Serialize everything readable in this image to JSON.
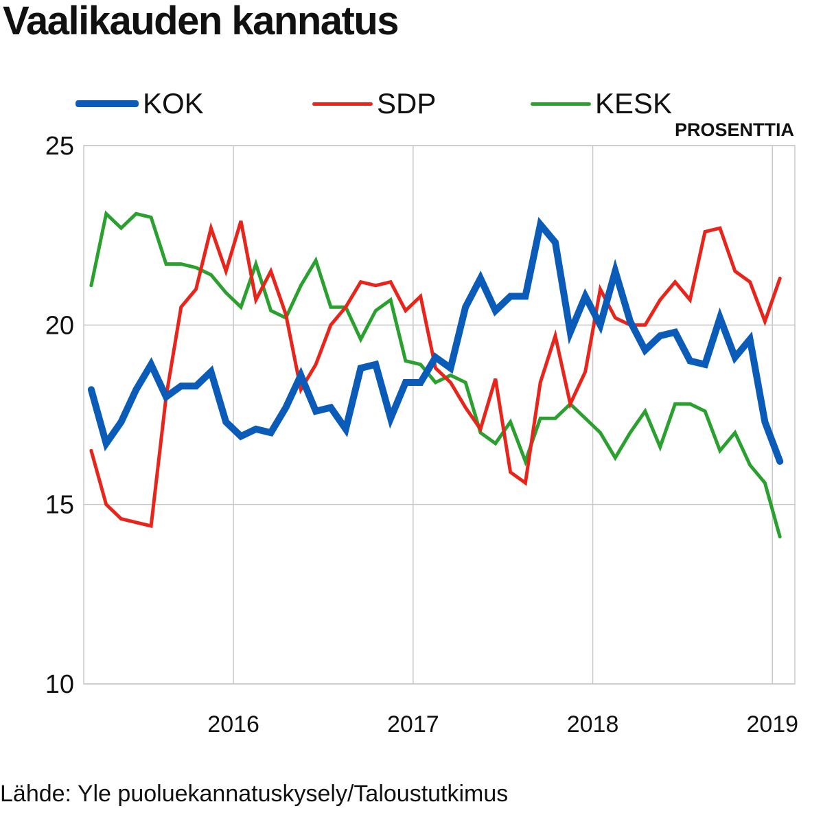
{
  "title": "Vaalikauden kannatus",
  "unit_label": "PROSENTTIA",
  "source": "Lähde: Yle puoluekannatuskysely/Taloustutkimus",
  "chart_data": {
    "type": "line",
    "title": "Vaalikauden kannatus",
    "ylabel": "PROSENTTIA",
    "xlabel": "",
    "ylim": [
      10,
      25
    ],
    "yticks": [
      10,
      15,
      20,
      25
    ],
    "xticks": [
      "2016",
      "2017",
      "2018",
      "2019"
    ],
    "xlim": [
      "2015-03",
      "2019-02"
    ],
    "grid": true,
    "legend_position": "top",
    "x": [
      "2015-03",
      "2015-04",
      "2015-05",
      "2015-06",
      "2015-07",
      "2015-08",
      "2015-09",
      "2015-10",
      "2015-11",
      "2015-12",
      "2016-01",
      "2016-02",
      "2016-03",
      "2016-04",
      "2016-05",
      "2016-06",
      "2016-07",
      "2016-08",
      "2016-09",
      "2016-10",
      "2016-11",
      "2016-12",
      "2017-01",
      "2017-02",
      "2017-03",
      "2017-04",
      "2017-05",
      "2017-06",
      "2017-07",
      "2017-08",
      "2017-09",
      "2017-10",
      "2017-11",
      "2017-12",
      "2018-01",
      "2018-02",
      "2018-03",
      "2018-04",
      "2018-05",
      "2018-06",
      "2018-07",
      "2018-08",
      "2018-09",
      "2018-10",
      "2018-11",
      "2018-12",
      "2019-01"
    ],
    "series": [
      {
        "name": "KOK",
        "color": "#0a5cb8",
        "width": 10,
        "values": [
          18.2,
          16.7,
          17.3,
          18.2,
          18.9,
          18.0,
          18.3,
          18.3,
          18.7,
          17.3,
          16.9,
          17.1,
          17.0,
          17.7,
          18.6,
          17.6,
          17.7,
          17.1,
          18.8,
          18.9,
          17.4,
          18.4,
          18.4,
          19.1,
          18.8,
          20.5,
          21.3,
          20.4,
          20.8,
          20.8,
          22.8,
          22.3,
          19.8,
          20.8,
          20.0,
          21.5,
          20.1,
          19.3,
          19.7,
          19.8,
          19.0,
          18.9,
          20.2,
          19.1,
          19.6,
          17.3,
          16.2
        ]
      },
      {
        "name": "SDP",
        "color": "#e8241b",
        "width": 5,
        "values": [
          16.5,
          15.0,
          14.6,
          14.5,
          14.4,
          18.0,
          20.5,
          21.0,
          22.7,
          21.5,
          22.9,
          20.7,
          21.5,
          20.3,
          18.2,
          18.9,
          20.0,
          20.5,
          21.2,
          21.1,
          21.2,
          20.4,
          20.8,
          18.8,
          18.4,
          17.7,
          17.1,
          18.5,
          15.9,
          15.6,
          18.4,
          19.7,
          17.8,
          18.7,
          21.0,
          20.2,
          20.0,
          20.0,
          20.7,
          21.2,
          20.7,
          22.6,
          22.7,
          21.5,
          21.2,
          20.1,
          21.3
        ]
      },
      {
        "name": "KESK",
        "color": "#2aa12f",
        "width": 5,
        "values": [
          21.1,
          23.1,
          22.7,
          23.1,
          23.0,
          21.7,
          21.7,
          21.6,
          21.4,
          20.9,
          20.5,
          21.7,
          20.4,
          20.2,
          21.1,
          21.8,
          20.5,
          20.5,
          19.6,
          20.4,
          20.7,
          19.0,
          18.9,
          18.4,
          18.6,
          18.4,
          17.0,
          16.7,
          17.3,
          16.2,
          17.4,
          17.4,
          17.8,
          17.4,
          17.0,
          16.3,
          17.0,
          17.6,
          16.6,
          17.8,
          17.8,
          17.6,
          16.5,
          17.0,
          16.1,
          15.6,
          14.1
        ]
      }
    ]
  }
}
